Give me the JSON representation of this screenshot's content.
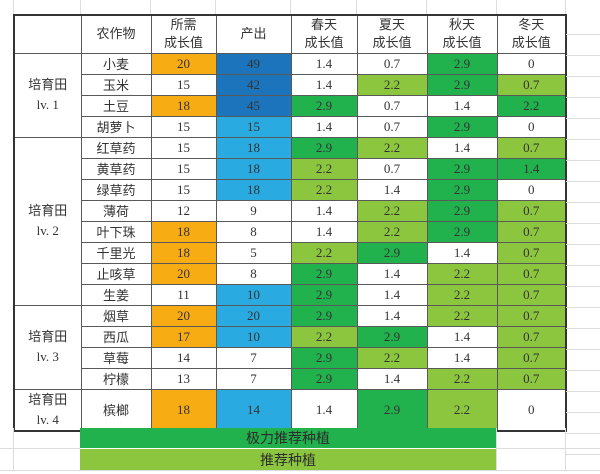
{
  "colors": {
    "orange": "#F8AC13",
    "blue_dark": "#1C75BC",
    "blue_light": "#29ABE2",
    "green_dark": "#21B14D",
    "green_light": "#8CC63F",
    "grid_faint": "#DCDCDC",
    "border_dark": "#343434"
  },
  "header": {
    "group": "",
    "crop": "农作物",
    "need": "所需\n成长值",
    "produce": "产出",
    "spring": "春天\n成长值",
    "summer": "夏天\n成长值",
    "autumn": "秋天\n成长值",
    "winter": "冬天\n成长值"
  },
  "groups": [
    {
      "label": "培育田\nlv. 1",
      "span": 4
    },
    {
      "label": "培育田\nlv. 2",
      "span": 8
    },
    {
      "label": "培育田\nlv. 3",
      "span": 4
    },
    {
      "label": "培育田\nlv. 4",
      "span": 1
    }
  ],
  "rows": [
    {
      "crop": "小麦",
      "need": "20",
      "need_fill": "orange",
      "produce": "49",
      "produce_fill": "blue_dark",
      "seasons": [
        [
          "1.4",
          "white"
        ],
        [
          "0.7",
          "white"
        ],
        [
          "2.9",
          "green_dark"
        ],
        [
          "0",
          "white"
        ]
      ]
    },
    {
      "crop": "玉米",
      "need": "15",
      "need_fill": "white",
      "produce": "42",
      "produce_fill": "blue_dark",
      "seasons": [
        [
          "1.4",
          "white"
        ],
        [
          "2.2",
          "green_light"
        ],
        [
          "2.9",
          "green_dark"
        ],
        [
          "0.7",
          "green_light"
        ]
      ]
    },
    {
      "crop": "土豆",
      "need": "18",
      "need_fill": "orange",
      "produce": "45",
      "produce_fill": "blue_dark",
      "seasons": [
        [
          "2.9",
          "green_dark"
        ],
        [
          "0.7",
          "white"
        ],
        [
          "1.4",
          "white"
        ],
        [
          "2.2",
          "green_dark"
        ]
      ]
    },
    {
      "crop": "胡萝卜",
      "need": "15",
      "need_fill": "white",
      "produce": "15",
      "produce_fill": "blue_light",
      "seasons": [
        [
          "1.4",
          "white"
        ],
        [
          "0.7",
          "white"
        ],
        [
          "2.9",
          "green_dark"
        ],
        [
          "0",
          "white"
        ]
      ]
    },
    {
      "crop": "红草药",
      "need": "15",
      "need_fill": "white",
      "produce": "18",
      "produce_fill": "blue_light",
      "seasons": [
        [
          "2.9",
          "green_dark"
        ],
        [
          "2.2",
          "green_light"
        ],
        [
          "1.4",
          "white"
        ],
        [
          "0.7",
          "green_light"
        ]
      ]
    },
    {
      "crop": "黄草药",
      "need": "15",
      "need_fill": "white",
      "produce": "18",
      "produce_fill": "blue_light",
      "seasons": [
        [
          "2.2",
          "green_light"
        ],
        [
          "0.7",
          "white"
        ],
        [
          "2.9",
          "green_dark"
        ],
        [
          "1.4",
          "green_dark"
        ]
      ]
    },
    {
      "crop": "绿草药",
      "need": "15",
      "need_fill": "white",
      "produce": "18",
      "produce_fill": "blue_light",
      "seasons": [
        [
          "2.2",
          "green_light"
        ],
        [
          "1.4",
          "white"
        ],
        [
          "2.9",
          "green_dark"
        ],
        [
          "0",
          "white"
        ]
      ]
    },
    {
      "crop": "薄荷",
      "need": "12",
      "need_fill": "white",
      "produce": "9",
      "produce_fill": "white",
      "seasons": [
        [
          "1.4",
          "white"
        ],
        [
          "2.2",
          "green_light"
        ],
        [
          "2.9",
          "green_dark"
        ],
        [
          "0.7",
          "green_light"
        ]
      ]
    },
    {
      "crop": "叶下珠",
      "need": "18",
      "need_fill": "orange",
      "produce": "8",
      "produce_fill": "white",
      "seasons": [
        [
          "1.4",
          "white"
        ],
        [
          "2.2",
          "green_light"
        ],
        [
          "2.9",
          "green_dark"
        ],
        [
          "0.7",
          "green_light"
        ]
      ]
    },
    {
      "crop": "千里光",
      "need": "18",
      "need_fill": "orange",
      "produce": "5",
      "produce_fill": "white",
      "seasons": [
        [
          "2.2",
          "green_light"
        ],
        [
          "2.9",
          "green_dark"
        ],
        [
          "1.4",
          "white"
        ],
        [
          "0.7",
          "green_light"
        ]
      ]
    },
    {
      "crop": "止咳草",
      "need": "20",
      "need_fill": "orange",
      "produce": "8",
      "produce_fill": "white",
      "seasons": [
        [
          "2.9",
          "green_dark"
        ],
        [
          "1.4",
          "white"
        ],
        [
          "2.2",
          "green_light"
        ],
        [
          "0.7",
          "green_light"
        ]
      ]
    },
    {
      "crop": "生姜",
      "need": "11",
      "need_fill": "white",
      "produce": "10",
      "produce_fill": "blue_light",
      "seasons": [
        [
          "2.9",
          "green_dark"
        ],
        [
          "1.4",
          "white"
        ],
        [
          "2.2",
          "green_light"
        ],
        [
          "0.7",
          "green_light"
        ]
      ]
    },
    {
      "crop": "烟草",
      "need": "20",
      "need_fill": "orange",
      "produce": "20",
      "produce_fill": "blue_light",
      "seasons": [
        [
          "2.9",
          "green_dark"
        ],
        [
          "1.4",
          "white"
        ],
        [
          "2.2",
          "green_light"
        ],
        [
          "0.7",
          "green_light"
        ]
      ]
    },
    {
      "crop": "西瓜",
      "need": "17",
      "need_fill": "orange",
      "produce": "10",
      "produce_fill": "blue_light",
      "seasons": [
        [
          "2.2",
          "green_light"
        ],
        [
          "2.9",
          "green_dark"
        ],
        [
          "1.4",
          "white"
        ],
        [
          "0.7",
          "green_light"
        ]
      ]
    },
    {
      "crop": "草莓",
      "need": "14",
      "need_fill": "white",
      "produce": "7",
      "produce_fill": "white",
      "seasons": [
        [
          "2.9",
          "green_dark"
        ],
        [
          "2.2",
          "green_light"
        ],
        [
          "1.4",
          "white"
        ],
        [
          "0.7",
          "green_light"
        ]
      ]
    },
    {
      "crop": "柠檬",
      "need": "13",
      "need_fill": "white",
      "produce": "7",
      "produce_fill": "white",
      "seasons": [
        [
          "2.9",
          "green_dark"
        ],
        [
          "1.4",
          "white"
        ],
        [
          "2.2",
          "green_light"
        ],
        [
          "0.7",
          "green_light"
        ]
      ]
    },
    {
      "crop": "槟榔",
      "need": "18",
      "need_fill": "orange",
      "produce": "14",
      "produce_fill": "blue_light",
      "seasons": [
        [
          "1.4",
          "white"
        ],
        [
          "2.9",
          "green_dark"
        ],
        [
          "2.2",
          "green_light"
        ],
        [
          "0",
          "white"
        ]
      ]
    }
  ],
  "legend": [
    {
      "label": "极力推荐种植",
      "fill": "green_dark"
    },
    {
      "label": "推荐种植",
      "fill": "green_light"
    }
  ]
}
